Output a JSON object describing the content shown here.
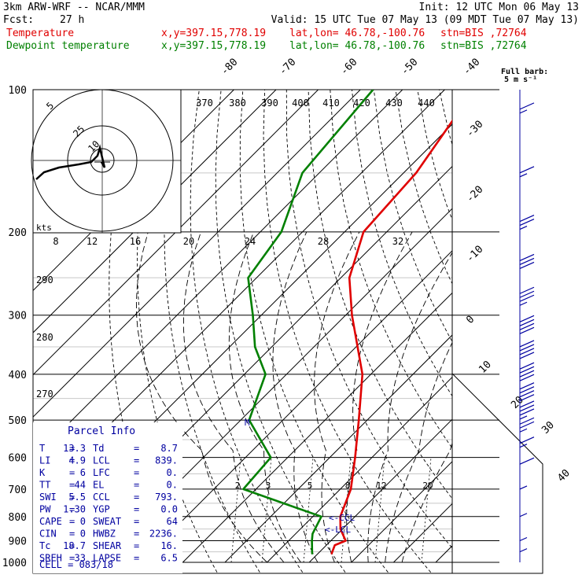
{
  "header": {
    "model": "3km ARW-WRF -- NCAR/MMM",
    "init": "Init: 12 UTC Mon 06 May 13",
    "fcst_label": "Fcst:",
    "fcst_value": "27 h",
    "valid": "Valid: 15 UTC Tue 07 May 13 (09 MDT Tue 07 May 13)",
    "temp_label": "Temperature",
    "dew_label": "Dewpoint temperature",
    "xy": "x,y=397.15,778.19",
    "latlon": "lat,lon= 46.78,-100.76",
    "stn": "stn=BIS ,72764"
  },
  "colors": {
    "temperature": "#e00000",
    "dewpoint": "#008000",
    "wind": "#0000a0",
    "parcel": "#0000a0"
  },
  "full_barb": {
    "line1": "Full barb:",
    "line2": "5 m s⁻¹"
  },
  "chart_data": {
    "type": "line",
    "title": "",
    "pressure_levels": [
      100,
      200,
      300,
      400,
      500,
      600,
      700,
      800,
      900,
      1000
    ],
    "pressure_labels": [
      "100",
      "200",
      "300",
      "400",
      "500",
      "600",
      "700",
      "800",
      "900",
      "1000"
    ],
    "isotherm_labels": [
      "-80",
      "-70",
      "-60",
      "-50",
      "-40",
      "-30",
      "-20",
      "-10",
      "0",
      "10",
      "20",
      "30",
      "40"
    ],
    "theta_labels": [
      "370",
      "380",
      "390",
      "400",
      "410",
      "420",
      "430",
      "440"
    ],
    "theta_left_labels": [
      "290",
      "280",
      "270"
    ],
    "mixing_ratio_labels": [
      "2",
      "3",
      "5",
      "8",
      "12",
      "20"
    ],
    "temperature": [
      {
        "p": 100,
        "t": -63.0
      },
      {
        "p": 150,
        "t": -57.0
      },
      {
        "p": 200,
        "t": -55.5
      },
      {
        "p": 250,
        "t": -48.0
      },
      {
        "p": 300,
        "t": -38.5
      },
      {
        "p": 400,
        "t": -22.0
      },
      {
        "p": 500,
        "t": -12.0
      },
      {
        "p": 600,
        "t": -4.0
      },
      {
        "p": 700,
        "t": 2.5
      },
      {
        "p": 800,
        "t": 6.5
      },
      {
        "p": 850,
        "t": 9.5
      },
      {
        "p": 900,
        "t": 13.5
      },
      {
        "p": 920,
        "t": 12.0
      },
      {
        "p": 960,
        "t": 13.3
      }
    ],
    "dewpoint": [
      {
        "p": 100,
        "t": -87.0
      },
      {
        "p": 150,
        "t": -84.0
      },
      {
        "p": 200,
        "t": -75.0
      },
      {
        "p": 250,
        "t": -72.0
      },
      {
        "p": 300,
        "t": -62.0
      },
      {
        "p": 350,
        "t": -54.0
      },
      {
        "p": 400,
        "t": -45.0
      },
      {
        "p": 500,
        "t": -38.0
      },
      {
        "p": 600,
        "t": -24.0
      },
      {
        "p": 700,
        "t": -23.0
      },
      {
        "p": 800,
        "t": 2.0
      },
      {
        "p": 870,
        "t": 4.0
      },
      {
        "p": 900,
        "t": 5.5
      },
      {
        "p": 960,
        "t": 8.7
      }
    ],
    "wind_barbs": [
      {
        "p": 110,
        "kt": 15
      },
      {
        "p": 150,
        "kt": 18
      },
      {
        "p": 190,
        "kt": 25
      },
      {
        "p": 230,
        "kt": 30
      },
      {
        "p": 270,
        "kt": 35
      },
      {
        "p": 310,
        "kt": 40
      },
      {
        "p": 350,
        "kt": 40
      },
      {
        "p": 390,
        "kt": 40
      },
      {
        "p": 430,
        "kt": 40
      },
      {
        "p": 470,
        "kt": 35
      },
      {
        "p": 510,
        "kt": 25
      },
      {
        "p": 560,
        "kt": 15
      },
      {
        "p": 620,
        "kt": 10
      },
      {
        "p": 700,
        "kt": 5
      },
      {
        "p": 800,
        "kt": 3
      },
      {
        "p": 900,
        "kt": 3
      },
      {
        "p": 950,
        "kt": 3
      }
    ],
    "hodograph": {
      "speed_rings_label": [
        "5",
        "25",
        "10"
      ],
      "axis_label": "kts",
      "speed_ticks": [
        "8",
        "12",
        "16",
        "20",
        "24",
        "28",
        "32"
      ]
    }
  },
  "parcel": {
    "title": "Parcel Info",
    "rows": [
      {
        "l1": "T",
        "v1": "13.3",
        "l2": "Td",
        "v2": "8.7"
      },
      {
        "l1": "LI",
        "v1": "4.9",
        "l2": "LCL",
        "v2": "839."
      },
      {
        "l1": "K",
        "v1": "6",
        "l2": "LFC",
        "v2": "0."
      },
      {
        "l1": "TT",
        "v1": "44",
        "l2": "EL",
        "v2": "0."
      },
      {
        "l1": "SWI",
        "v1": "5.5",
        "l2": "CCL",
        "v2": "793."
      },
      {
        "l1": "PW",
        "v1": "1.30",
        "l2": "YGP",
        "v2": "0.0"
      },
      {
        "l1": "CAPE",
        "v1": "0",
        "l2": "SWEAT",
        "v2": "64"
      },
      {
        "l1": "CIN",
        "v1": "0",
        "l2": "HWBZ",
        "v2": "2236."
      },
      {
        "l1": "Tc",
        "v1": "18.7",
        "l2": "SHEAR",
        "v2": "16."
      },
      {
        "l1": "SREH",
        "v1": "33",
        "l2": "LAPSE",
        "v2": "6.5"
      }
    ],
    "cell": "CELL = 083/18"
  },
  "markers": {
    "ccl": "<-CCL",
    "lcl": "<-LCL",
    "m": "M"
  }
}
